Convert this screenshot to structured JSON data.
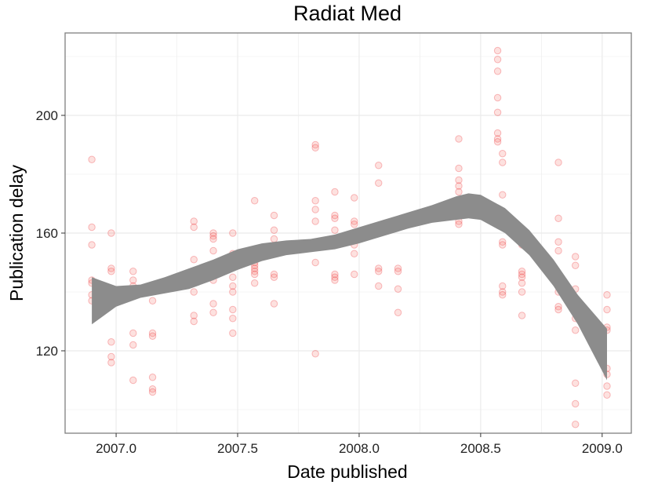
{
  "chart_data": {
    "type": "scatter",
    "title": "Radiat Med",
    "xlabel": "Date published",
    "ylabel": "Publication delay",
    "xlim": [
      2006.79,
      2009.12
    ],
    "ylim": [
      92,
      228
    ],
    "x_ticks": [
      2007.0,
      2007.5,
      2008.0,
      2008.5,
      2009.0
    ],
    "x_tick_labels": [
      "2007.0",
      "2007.5",
      "2008.0",
      "2008.5",
      "2009.0"
    ],
    "y_ticks": [
      120,
      160,
      200
    ],
    "y_tick_labels": [
      "120",
      "160",
      "200"
    ],
    "grid": true,
    "colors": {
      "points": "#f8766d",
      "points_edge": "#e8161d",
      "smooth": "#8c8c8c",
      "grid": "#ebebeb",
      "panel_border": "#7f7f7f"
    },
    "points": [
      [
        2006.9,
        185
      ],
      [
        2006.9,
        162
      ],
      [
        2006.9,
        156
      ],
      [
        2006.9,
        144
      ],
      [
        2006.9,
        143
      ],
      [
        2006.9,
        139
      ],
      [
        2006.9,
        137
      ],
      [
        2006.98,
        160
      ],
      [
        2006.98,
        148
      ],
      [
        2006.98,
        147
      ],
      [
        2006.98,
        140
      ],
      [
        2006.98,
        123
      ],
      [
        2006.98,
        118
      ],
      [
        2006.98,
        116
      ],
      [
        2007.07,
        147
      ],
      [
        2007.07,
        144
      ],
      [
        2007.07,
        142
      ],
      [
        2007.07,
        126
      ],
      [
        2007.07,
        122
      ],
      [
        2007.07,
        110
      ],
      [
        2007.15,
        137
      ],
      [
        2007.15,
        126
      ],
      [
        2007.15,
        125
      ],
      [
        2007.15,
        111
      ],
      [
        2007.15,
        107
      ],
      [
        2007.15,
        106
      ],
      [
        2007.32,
        164
      ],
      [
        2007.32,
        162
      ],
      [
        2007.32,
        151
      ],
      [
        2007.32,
        144
      ],
      [
        2007.32,
        140
      ],
      [
        2007.32,
        132
      ],
      [
        2007.32,
        130
      ],
      [
        2007.4,
        160
      ],
      [
        2007.4,
        159
      ],
      [
        2007.4,
        158
      ],
      [
        2007.4,
        154
      ],
      [
        2007.4,
        144
      ],
      [
        2007.4,
        136
      ],
      [
        2007.4,
        133
      ],
      [
        2007.48,
        160
      ],
      [
        2007.48,
        153
      ],
      [
        2007.48,
        149
      ],
      [
        2007.48,
        145
      ],
      [
        2007.48,
        142
      ],
      [
        2007.48,
        140
      ],
      [
        2007.48,
        134
      ],
      [
        2007.48,
        131
      ],
      [
        2007.48,
        126
      ],
      [
        2007.57,
        171
      ],
      [
        2007.57,
        154
      ],
      [
        2007.57,
        150
      ],
      [
        2007.57,
        149
      ],
      [
        2007.57,
        148
      ],
      [
        2007.57,
        147
      ],
      [
        2007.57,
        146
      ],
      [
        2007.57,
        143
      ],
      [
        2007.65,
        166
      ],
      [
        2007.65,
        161
      ],
      [
        2007.65,
        158
      ],
      [
        2007.65,
        154
      ],
      [
        2007.65,
        146
      ],
      [
        2007.65,
        145
      ],
      [
        2007.65,
        136
      ],
      [
        2007.82,
        190
      ],
      [
        2007.82,
        189
      ],
      [
        2007.82,
        171
      ],
      [
        2007.82,
        168
      ],
      [
        2007.82,
        164
      ],
      [
        2007.82,
        157
      ],
      [
        2007.82,
        150
      ],
      [
        2007.82,
        119
      ],
      [
        2007.9,
        174
      ],
      [
        2007.9,
        166
      ],
      [
        2007.9,
        165
      ],
      [
        2007.9,
        161
      ],
      [
        2007.9,
        158
      ],
      [
        2007.9,
        146
      ],
      [
        2007.9,
        145
      ],
      [
        2007.9,
        144
      ],
      [
        2007.98,
        172
      ],
      [
        2007.98,
        164
      ],
      [
        2007.98,
        163
      ],
      [
        2007.98,
        159
      ],
      [
        2007.98,
        158
      ],
      [
        2007.98,
        156
      ],
      [
        2007.98,
        153
      ],
      [
        2007.98,
        146
      ],
      [
        2008.08,
        183
      ],
      [
        2008.08,
        177
      ],
      [
        2008.08,
        162
      ],
      [
        2008.08,
        161
      ],
      [
        2008.08,
        160
      ],
      [
        2008.08,
        148
      ],
      [
        2008.08,
        147
      ],
      [
        2008.08,
        142
      ],
      [
        2008.16,
        148
      ],
      [
        2008.16,
        147
      ],
      [
        2008.16,
        141
      ],
      [
        2008.16,
        133
      ],
      [
        2008.41,
        192
      ],
      [
        2008.41,
        182
      ],
      [
        2008.41,
        178
      ],
      [
        2008.41,
        176
      ],
      [
        2008.41,
        174
      ],
      [
        2008.41,
        171
      ],
      [
        2008.41,
        164
      ],
      [
        2008.41,
        163
      ],
      [
        2008.57,
        222
      ],
      [
        2008.57,
        219
      ],
      [
        2008.57,
        215
      ],
      [
        2008.57,
        206
      ],
      [
        2008.57,
        201
      ],
      [
        2008.57,
        194
      ],
      [
        2008.57,
        192
      ],
      [
        2008.57,
        191
      ],
      [
        2008.59,
        187
      ],
      [
        2008.59,
        184
      ],
      [
        2008.59,
        173
      ],
      [
        2008.59,
        167
      ],
      [
        2008.59,
        164
      ],
      [
        2008.59,
        157
      ],
      [
        2008.59,
        156
      ],
      [
        2008.59,
        142
      ],
      [
        2008.59,
        140
      ],
      [
        2008.59,
        139
      ],
      [
        2008.67,
        158
      ],
      [
        2008.67,
        156
      ],
      [
        2008.67,
        147
      ],
      [
        2008.67,
        146
      ],
      [
        2008.67,
        145
      ],
      [
        2008.67,
        143
      ],
      [
        2008.67,
        140
      ],
      [
        2008.67,
        132
      ],
      [
        2008.82,
        184
      ],
      [
        2008.82,
        165
      ],
      [
        2008.82,
        157
      ],
      [
        2008.82,
        154
      ],
      [
        2008.82,
        140
      ],
      [
        2008.82,
        135
      ],
      [
        2008.82,
        134
      ],
      [
        2008.89,
        152
      ],
      [
        2008.89,
        149
      ],
      [
        2008.89,
        141
      ],
      [
        2008.89,
        131
      ],
      [
        2008.89,
        127
      ],
      [
        2008.89,
        109
      ],
      [
        2008.89,
        102
      ],
      [
        2008.89,
        95
      ],
      [
        2009.02,
        139
      ],
      [
        2009.02,
        134
      ],
      [
        2009.02,
        128
      ],
      [
        2009.02,
        127
      ],
      [
        2009.02,
        114
      ],
      [
        2009.02,
        112
      ],
      [
        2009.02,
        108
      ],
      [
        2009.02,
        105
      ]
    ],
    "smooth": {
      "x": [
        2006.9,
        2007.0,
        2007.1,
        2007.2,
        2007.3,
        2007.4,
        2007.5,
        2007.6,
        2007.7,
        2007.8,
        2007.9,
        2008.0,
        2008.1,
        2008.2,
        2008.3,
        2008.4,
        2008.45,
        2008.5,
        2008.6,
        2008.7,
        2008.8,
        2008.9,
        2009.02
      ],
      "lower": [
        129,
        135,
        138,
        139.5,
        141,
        144,
        147.5,
        150.5,
        152.5,
        153.5,
        154.5,
        156.5,
        159,
        161.5,
        163.5,
        164.5,
        165,
        164.5,
        160,
        152.5,
        142,
        129,
        110
      ],
      "upper": [
        145,
        142,
        142.5,
        145,
        148,
        151,
        154.5,
        156.5,
        157.5,
        158,
        159.5,
        162,
        164.5,
        167,
        169.5,
        172.5,
        173.5,
        173,
        168.5,
        161,
        151,
        139,
        127.5
      ]
    }
  }
}
